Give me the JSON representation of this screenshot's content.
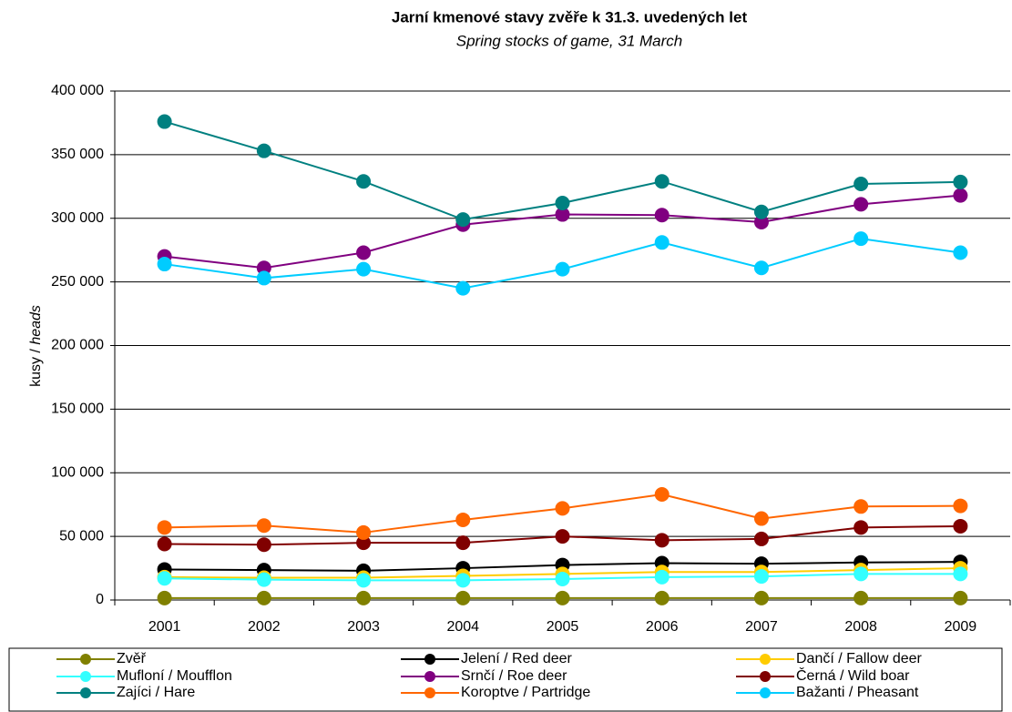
{
  "chart_data": {
    "type": "line",
    "title": "Jarní kmenové stavy zvěře k 31.3. uvedených let",
    "subtitle": "Spring stocks of game, 31 March",
    "ylabel": [
      "kusy /",
      "heads"
    ],
    "categories": [
      "2001",
      "2002",
      "2003",
      "2004",
      "2005",
      "2006",
      "2007",
      "2008",
      "2009"
    ],
    "ylim": [
      0,
      400000
    ],
    "yticks": [
      0,
      {
        "value": 50000,
        "label": "50 000"
      },
      {
        "value": 100000,
        "label": "100 000"
      },
      {
        "value": 150000,
        "label": "150 000"
      },
      {
        "value": 200000,
        "label": "200 000"
      },
      {
        "value": 250000,
        "label": "250 000"
      },
      {
        "value": 300000,
        "label": "300 000"
      },
      {
        "value": 350000,
        "label": "350 000"
      },
      {
        "value": 400000,
        "label": "400 000"
      }
    ],
    "grid": true,
    "legend": "bottom",
    "series": [
      {
        "name": "Zvěř",
        "color": "#808000",
        "values": [
          1500,
          1500,
          1500,
          1500,
          1500,
          1500,
          1500,
          1500,
          1500
        ]
      },
      {
        "name": "Jelení / Red deer",
        "color": "#000000",
        "values": [
          24000,
          23500,
          23000,
          25000,
          27500,
          29000,
          28500,
          29500,
          30000
        ]
      },
      {
        "name": "Dančí / Fallow deer",
        "color": "#FFCC00",
        "values": [
          18000,
          17500,
          17500,
          19000,
          20500,
          22000,
          22000,
          23500,
          25000
        ]
      },
      {
        "name": "Mufloní / Moufflon",
        "color": "#33FFFF",
        "values": [
          17000,
          16000,
          15500,
          15500,
          16500,
          18000,
          18500,
          20500,
          20500
        ]
      },
      {
        "name": "Srnčí / Roe deer",
        "color": "#800080",
        "values": [
          270000,
          261000,
          273000,
          295000,
          303000,
          302500,
          297000,
          311000,
          318000
        ]
      },
      {
        "name": "Černá / Wild boar",
        "color": "#800000",
        "values": [
          44000,
          43500,
          45000,
          45000,
          50000,
          47000,
          48000,
          57000,
          58000
        ]
      },
      {
        "name": "Zajíci / Hare",
        "color": "#008080",
        "values": [
          376000,
          353000,
          329000,
          299000,
          312000,
          329000,
          305000,
          327000,
          328500
        ]
      },
      {
        "name": "Koroptve / Partridge",
        "color": "#FF6600",
        "values": [
          57000,
          58500,
          53000,
          63000,
          72000,
          83000,
          64000,
          73500,
          74000
        ]
      },
      {
        "name": "Bažanti / Pheasant",
        "color": "#00CCFF",
        "values": [
          264000,
          253000,
          260000,
          245000,
          260000,
          281000,
          261000,
          284000,
          273000
        ]
      }
    ]
  }
}
